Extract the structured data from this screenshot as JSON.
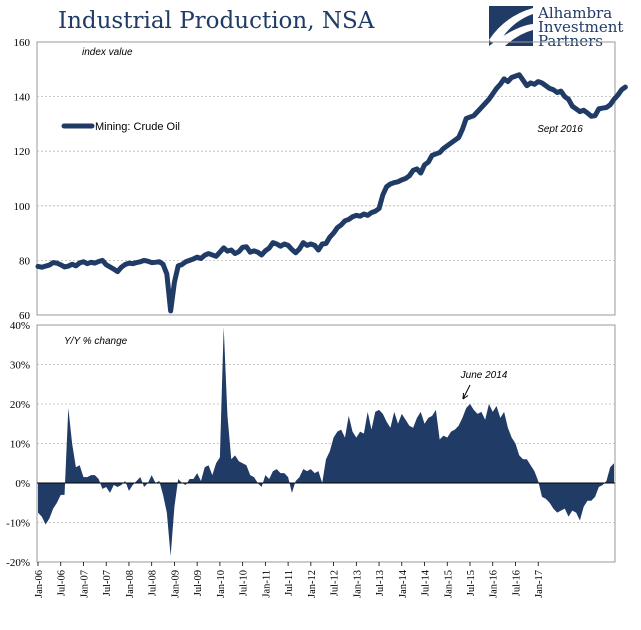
{
  "title": "Industrial Production, NSA",
  "logo": {
    "name_lines": [
      "Alhambra",
      "Investment",
      "Partners"
    ],
    "icon": "alhambra-swoosh-logo-icon"
  },
  "colors": {
    "series": "#1f3b66",
    "title": "#1f3b66"
  },
  "chart_data": [
    {
      "type": "line",
      "title": "",
      "xlabel": "",
      "ylabel": "",
      "annotation_topleft": "index value",
      "ylim": [
        60,
        160
      ],
      "yticks": [
        60,
        80,
        100,
        120,
        140,
        160
      ],
      "grid": true,
      "legend": {
        "placement": "left",
        "label": "Mining: Crude Oil"
      },
      "annotations": [
        {
          "text": "Sept 2016",
          "x": "2016-09"
        }
      ],
      "series": [
        {
          "name": "Mining: Crude Oil",
          "x_start": "2006-01",
          "frequency": "monthly",
          "values": [
            77.8,
            77.5,
            77.9,
            78.3,
            79.2,
            79.0,
            78.4,
            77.6,
            77.9,
            78.6,
            78.0,
            79.1,
            79.5,
            78.8,
            79.3,
            79.0,
            79.6,
            80.0,
            78.4,
            77.6,
            76.8,
            75.9,
            77.5,
            78.5,
            79.0,
            78.8,
            79.2,
            79.5,
            80.0,
            79.7,
            79.2,
            79.3,
            79.5,
            78.6,
            75.0,
            61.5,
            72.0,
            78.0,
            78.5,
            79.5,
            80.0,
            80.5,
            81.2,
            80.7,
            81.9,
            82.5,
            82.0,
            81.5,
            83.0,
            84.6,
            83.4,
            83.8,
            82.5,
            83.2,
            84.8,
            85.0,
            83.0,
            83.5,
            83.0,
            82.0,
            83.5,
            84.5,
            86.5,
            86.0,
            85.2,
            86.0,
            85.5,
            84.0,
            82.8,
            84.2,
            86.5,
            85.5,
            86.0,
            85.5,
            83.8,
            86.0,
            86.2,
            88.5,
            90.0,
            92.0,
            93.0,
            94.5,
            95.0,
            96.0,
            96.5,
            96.2,
            97.0,
            96.5,
            97.5,
            98.0,
            99.0,
            104.0,
            107.0,
            108.0,
            108.5,
            108.8,
            109.5,
            110.0,
            111.0,
            113.0,
            113.5,
            112.0,
            115.0,
            116.0,
            118.5,
            119.0,
            119.5,
            121.0,
            122.0,
            123.0,
            124.0,
            125.0,
            128.0,
            132.0,
            132.5,
            133.0,
            134.5,
            136.0,
            137.5,
            139.0,
            141.0,
            143.0,
            144.5,
            146.5,
            145.5,
            147.0,
            147.5,
            148.0,
            146.0,
            144.0,
            145.0,
            144.5,
            145.5,
            145.0,
            144.0,
            143.0,
            142.5,
            141.5,
            142.0,
            140.0,
            139.0,
            136.5,
            135.5,
            134.5,
            135.0,
            134.0,
            132.8,
            133.0,
            135.5,
            135.8,
            136.0,
            137.0,
            139.0,
            140.5,
            142.5,
            143.5
          ]
        }
      ]
    },
    {
      "type": "area",
      "title": "",
      "xlabel": "",
      "ylabel": "",
      "annotation_topleft": "Y/Y % change",
      "ylim": [
        -20,
        40
      ],
      "yticks": [
        -20,
        -10,
        0,
        10,
        20,
        30,
        40
      ],
      "ytick_labels": [
        "-20%",
        "-10%",
        "0%",
        "10%",
        "20%",
        "30%",
        "40%"
      ],
      "grid": true,
      "annotations": [
        {
          "text": "June 2014",
          "x": "2014-06",
          "arrow": true
        }
      ],
      "x_tick_labels": [
        "Jan-06",
        "Jul-06",
        "Jan-07",
        "Jul-07",
        "Jan-08",
        "Jul-08",
        "Jan-09",
        "Jul-09",
        "Jan-10",
        "Jul-10",
        "Jan-11",
        "Jul-11",
        "Jan-12",
        "Jul-12",
        "Jan-13",
        "Jul-13",
        "Jan-14",
        "Jul-14",
        "Jan-15",
        "Jul-15",
        "Jan-16",
        "Jul-16",
        "Jan-17"
      ],
      "series": [
        {
          "name": "Mining: Crude Oil",
          "x_start": "2006-01",
          "frequency": "monthly",
          "values": [
            -7.5,
            -8.5,
            -10.5,
            -9.0,
            -6.5,
            -5.0,
            -3.0,
            -3.0,
            19.0,
            10.0,
            4.0,
            4.5,
            1.5,
            1.5,
            2.0,
            2.0,
            1.0,
            -1.5,
            -1.0,
            -2.5,
            -0.5,
            -1.0,
            -0.5,
            0.5,
            -2.0,
            -0.5,
            0.5,
            1.5,
            -1.0,
            0.0,
            2.0,
            0.0,
            0.5,
            -3.0,
            -7.5,
            -18.5,
            -6.0,
            1.0,
            0.0,
            -0.5,
            1.0,
            1.0,
            2.5,
            0.5,
            4.0,
            4.5,
            2.0,
            5.0,
            6.5,
            39.5,
            17.0,
            6.0,
            7.0,
            5.5,
            5.0,
            4.5,
            2.0,
            1.5,
            0.0,
            -1.0,
            2.0,
            1.0,
            3.0,
            3.5,
            2.5,
            2.5,
            1.5,
            -2.5,
            0.5,
            1.5,
            3.5,
            3.0,
            3.5,
            2.5,
            3.0,
            0.0,
            6.0,
            8.0,
            11.5,
            13.0,
            13.5,
            11.5,
            17.0,
            13.0,
            11.5,
            13.0,
            12.5,
            18.0,
            13.5,
            18.0,
            18.5,
            17.5,
            15.5,
            14.0,
            18.0,
            15.0,
            17.5,
            16.0,
            14.5,
            14.0,
            16.5,
            18.0,
            15.0,
            16.5,
            17.0,
            18.5,
            11.0,
            12.0,
            11.5,
            13.0,
            13.5,
            14.5,
            16.5,
            19.0,
            20.0,
            18.5,
            17.5,
            18.0,
            16.0,
            20.0,
            18.0,
            19.5,
            16.5,
            18.0,
            14.0,
            11.5,
            10.0,
            7.0,
            6.0,
            6.0,
            4.5,
            3.0,
            0.5,
            -3.5,
            -4.0,
            -5.0,
            -6.5,
            -7.5,
            -7.0,
            -6.5,
            -8.5,
            -7.0,
            -7.5,
            -9.5,
            -6.0,
            -4.5,
            -4.5,
            -3.5,
            -1.0,
            -0.5,
            0.5,
            4.0,
            5.0
          ]
        }
      ]
    }
  ]
}
